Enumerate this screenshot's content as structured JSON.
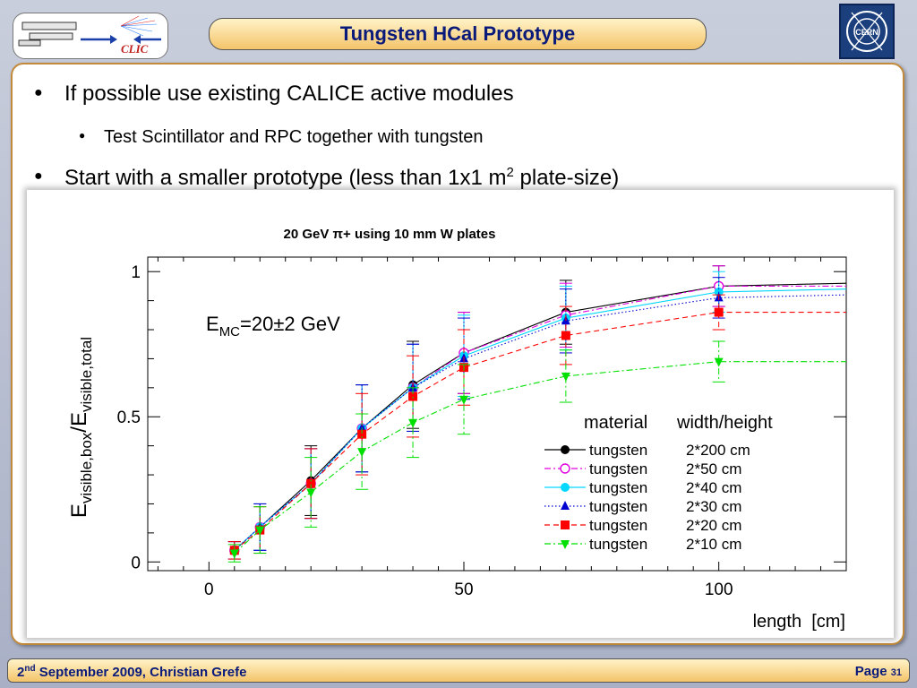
{
  "slide": {
    "title": "Tungsten HCal Prototype",
    "bullets": [
      {
        "text": "If possible use existing CALICE active modules"
      },
      {
        "text": "Test Scintillator and RPC together with tungsten"
      },
      {
        "text_before": "Start with a smaller prototype (less than 1x1 m",
        "sup": "2",
        "text_after": " plate-size)"
      }
    ],
    "logos": {
      "left_text": "CLIC",
      "right_text": "CERN"
    },
    "footer": {
      "day": "2",
      "ord": "nd",
      "rest": " September 2009, Christian Grefe",
      "page_label": "Page",
      "page_number": "31"
    }
  },
  "chart_data": {
    "type": "scatter",
    "title": "20 GeV π+ using 10 mm W plates",
    "annotation": {
      "base": "E",
      "sub": "MC",
      "rest": "=20±2 GeV"
    },
    "xlabel": "length  [cm]",
    "ylabel": {
      "e1": "E",
      "s1": "visible,box",
      "mid": "/E",
      "s2": "visible,total"
    },
    "xlim": [
      -12,
      125
    ],
    "ylim": [
      -0.03,
      1.05
    ],
    "xticks": [
      0,
      50,
      100
    ],
    "yticks": [
      0,
      0.5,
      1
    ],
    "ytick_labels": [
      "0",
      "0.5",
      "1"
    ],
    "grid": false,
    "legend_position": "bottom-right",
    "legend_headers": [
      "material",
      "width/height"
    ],
    "series": [
      {
        "material": "tungsten",
        "size": "2*200 cm",
        "color": "#000000",
        "marker": "circle",
        "line": "solid",
        "x": [
          5,
          10,
          20,
          30,
          40,
          50,
          70,
          100
        ],
        "y": [
          0.04,
          0.12,
          0.28,
          0.46,
          0.61,
          0.72,
          0.86,
          0.95
        ],
        "err": [
          0.03,
          0.08,
          0.12,
          0.15,
          0.15,
          0.14,
          0.11,
          0.07
        ],
        "tail": 0.96
      },
      {
        "material": "tungsten",
        "size": "2*50 cm",
        "color": "#e000e0",
        "marker": "open-circle",
        "line": "dashdot",
        "x": [
          5,
          10,
          20,
          30,
          40,
          50,
          70,
          100
        ],
        "y": [
          0.04,
          0.12,
          0.27,
          0.46,
          0.6,
          0.72,
          0.85,
          0.95
        ],
        "err": [
          0.03,
          0.08,
          0.12,
          0.15,
          0.15,
          0.14,
          0.11,
          0.07
        ],
        "tail": 0.95
      },
      {
        "material": "tungsten",
        "size": "2*40 cm",
        "color": "#00d8ff",
        "marker": "circle",
        "line": "solid",
        "x": [
          5,
          10,
          20,
          30,
          40,
          50,
          70,
          100
        ],
        "y": [
          0.04,
          0.12,
          0.27,
          0.46,
          0.6,
          0.71,
          0.84,
          0.93
        ],
        "err": [
          0.03,
          0.08,
          0.12,
          0.15,
          0.15,
          0.14,
          0.11,
          0.07
        ],
        "tail": 0.94
      },
      {
        "material": "tungsten",
        "size": "2*30 cm",
        "color": "#0000d0",
        "marker": "triangle",
        "line": "dotted",
        "x": [
          5,
          10,
          20,
          30,
          40,
          50,
          70,
          100
        ],
        "y": [
          0.04,
          0.12,
          0.27,
          0.46,
          0.6,
          0.7,
          0.83,
          0.91
        ],
        "err": [
          0.03,
          0.08,
          0.12,
          0.15,
          0.15,
          0.14,
          0.11,
          0.07
        ],
        "tail": 0.92
      },
      {
        "material": "tungsten",
        "size": "2*20 cm",
        "color": "#ff0000",
        "marker": "square",
        "line": "dashed",
        "x": [
          5,
          10,
          20,
          30,
          40,
          50,
          70,
          100
        ],
        "y": [
          0.04,
          0.11,
          0.27,
          0.44,
          0.57,
          0.67,
          0.78,
          0.86
        ],
        "err": [
          0.03,
          0.08,
          0.12,
          0.14,
          0.14,
          0.13,
          0.1,
          0.06
        ],
        "tail": 0.86
      },
      {
        "material": "tungsten",
        "size": "2*10 cm",
        "color": "#00e000",
        "marker": "triangle-down",
        "line": "dashdot",
        "x": [
          5,
          10,
          20,
          30,
          40,
          50,
          70,
          100
        ],
        "y": [
          0.03,
          0.11,
          0.24,
          0.38,
          0.48,
          0.56,
          0.64,
          0.69
        ],
        "err": [
          0.03,
          0.08,
          0.12,
          0.13,
          0.12,
          0.12,
          0.09,
          0.07
        ],
        "tail": 0.69
      }
    ]
  }
}
